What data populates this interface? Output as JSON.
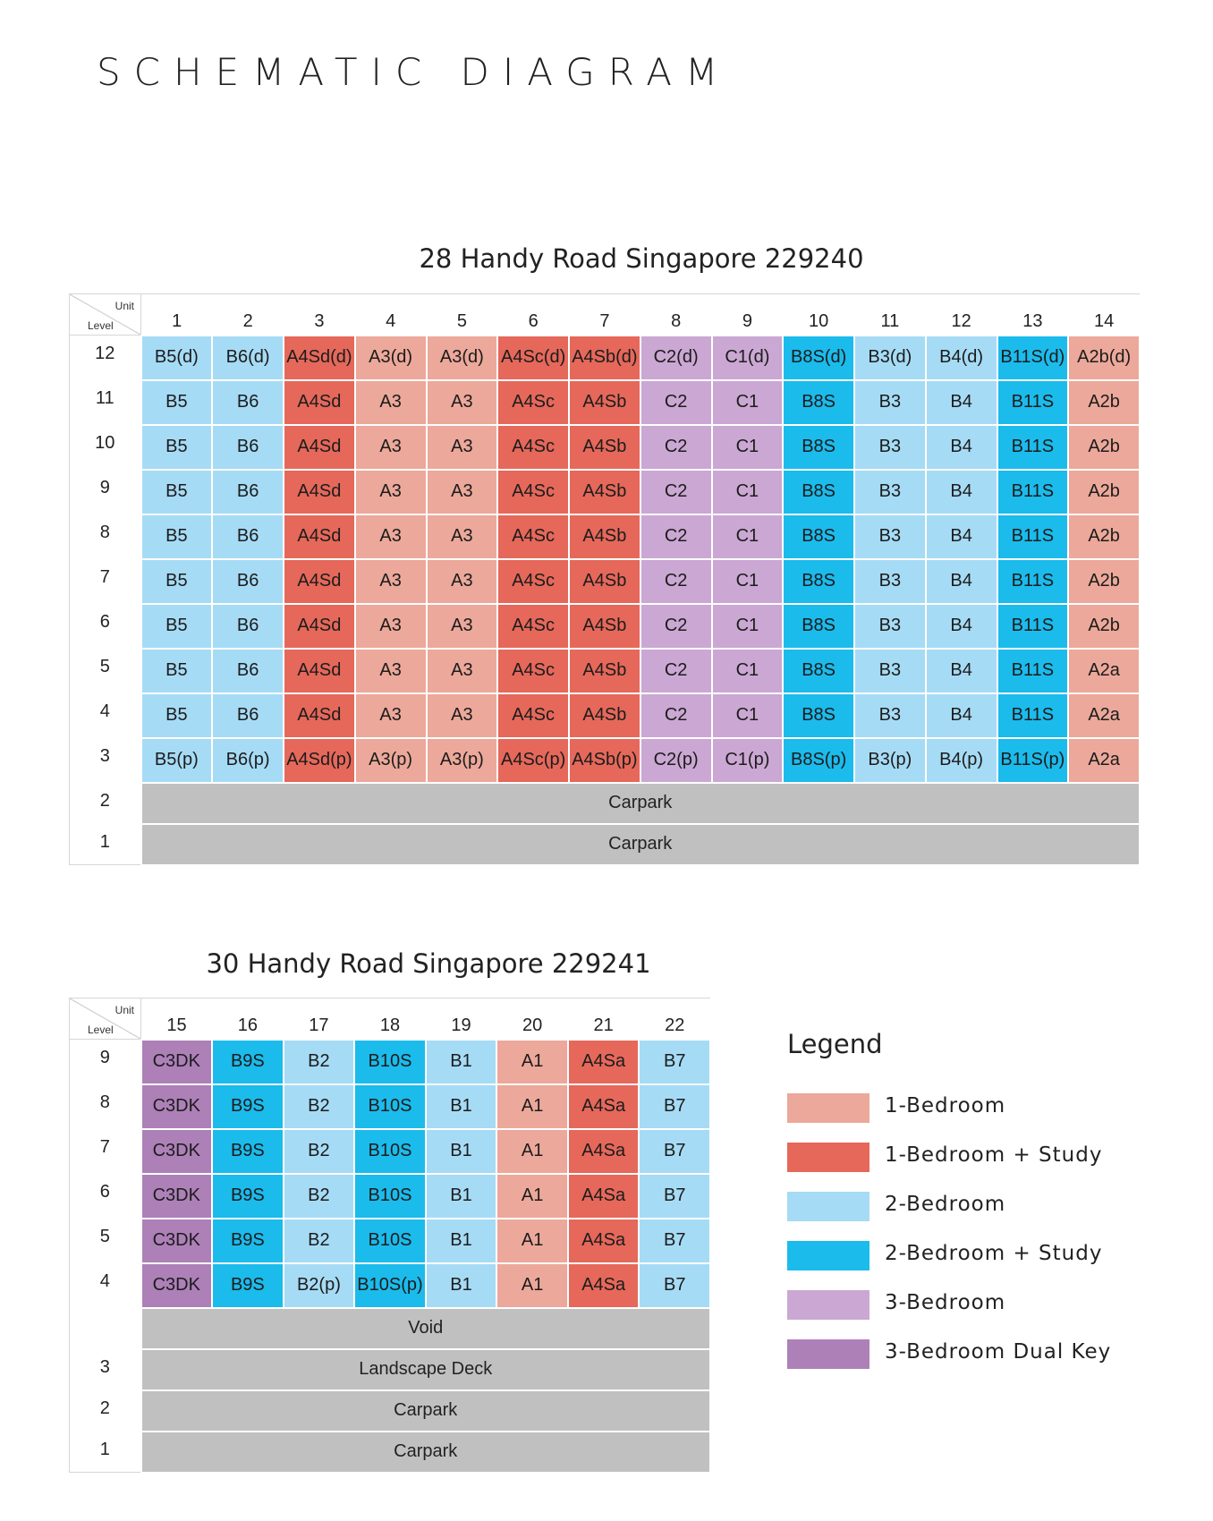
{
  "title": "SCHEMATIC DIAGRAM",
  "corner_unit": "Unit",
  "corner_level": "Level",
  "legend": {
    "title": "Legend",
    "items": [
      {
        "type": "1BR",
        "label": "1-Bedroom",
        "color": "#eca89a"
      },
      {
        "type": "1BRS",
        "label": "1-Bedroom + Study",
        "color": "#e5685a"
      },
      {
        "type": "2BR",
        "label": "2-Bedroom",
        "color": "#a6dbf5"
      },
      {
        "type": "2BRS",
        "label": "2-Bedroom + Study",
        "color": "#1bbbec"
      },
      {
        "type": "3BR",
        "label": "3-Bedroom",
        "color": "#cba7d3"
      },
      {
        "type": "3BRDK",
        "label": "3-Bedroom Dual Key",
        "color": "#ad80b8"
      }
    ]
  },
  "blocks": [
    {
      "id": "b28",
      "title": "28 Handy Road Singapore 229240",
      "units": [
        {
          "number": "1",
          "type": "2BR"
        },
        {
          "number": "2",
          "type": "2BR"
        },
        {
          "number": "3",
          "type": "1BRS"
        },
        {
          "number": "4",
          "type": "1BR"
        },
        {
          "number": "5",
          "type": "1BR"
        },
        {
          "number": "6",
          "type": "1BRS"
        },
        {
          "number": "7",
          "type": "1BRS"
        },
        {
          "number": "8",
          "type": "3BR"
        },
        {
          "number": "9",
          "type": "3BR"
        },
        {
          "number": "10",
          "type": "2BRS"
        },
        {
          "number": "11",
          "type": "2BR"
        },
        {
          "number": "12",
          "type": "2BR"
        },
        {
          "number": "13",
          "type": "2BRS"
        },
        {
          "number": "14",
          "type": "1BR"
        }
      ],
      "rows": [
        {
          "level": "12",
          "cells": [
            "B5(d)",
            "B6(d)",
            "A4Sd(d)",
            "A3(d)",
            "A3(d)",
            "A4Sc(d)",
            "A4Sb(d)",
            "C2(d)",
            "C1(d)",
            "B8S(d)",
            "B3(d)",
            "B4(d)",
            "B11S(d)",
            "A2b(d)"
          ]
        },
        {
          "level": "11",
          "cells": [
            "B5",
            "B6",
            "A4Sd",
            "A3",
            "A3",
            "A4Sc",
            "A4Sb",
            "C2",
            "C1",
            "B8S",
            "B3",
            "B4",
            "B11S",
            "A2b"
          ]
        },
        {
          "level": "10",
          "cells": [
            "B5",
            "B6",
            "A4Sd",
            "A3",
            "A3",
            "A4Sc",
            "A4Sb",
            "C2",
            "C1",
            "B8S",
            "B3",
            "B4",
            "B11S",
            "A2b"
          ]
        },
        {
          "level": "9",
          "cells": [
            "B5",
            "B6",
            "A4Sd",
            "A3",
            "A3",
            "A4Sc",
            "A4Sb",
            "C2",
            "C1",
            "B8S",
            "B3",
            "B4",
            "B11S",
            "A2b"
          ]
        },
        {
          "level": "8",
          "cells": [
            "B5",
            "B6",
            "A4Sd",
            "A3",
            "A3",
            "A4Sc",
            "A4Sb",
            "C2",
            "C1",
            "B8S",
            "B3",
            "B4",
            "B11S",
            "A2b"
          ]
        },
        {
          "level": "7",
          "cells": [
            "B5",
            "B6",
            "A4Sd",
            "A3",
            "A3",
            "A4Sc",
            "A4Sb",
            "C2",
            "C1",
            "B8S",
            "B3",
            "B4",
            "B11S",
            "A2b"
          ]
        },
        {
          "level": "6",
          "cells": [
            "B5",
            "B6",
            "A4Sd",
            "A3",
            "A3",
            "A4Sc",
            "A4Sb",
            "C2",
            "C1",
            "B8S",
            "B3",
            "B4",
            "B11S",
            "A2b"
          ]
        },
        {
          "level": "5",
          "cells": [
            "B5",
            "B6",
            "A4Sd",
            "A3",
            "A3",
            "A4Sc",
            "A4Sb",
            "C2",
            "C1",
            "B8S",
            "B3",
            "B4",
            "B11S",
            "A2a"
          ]
        },
        {
          "level": "4",
          "cells": [
            "B5",
            "B6",
            "A4Sd",
            "A3",
            "A3",
            "A4Sc",
            "A4Sb",
            "C2",
            "C1",
            "B8S",
            "B3",
            "B4",
            "B11S",
            "A2a"
          ]
        },
        {
          "level": "3",
          "cells": [
            "B5(p)",
            "B6(p)",
            "A4Sd(p)",
            "A3(p)",
            "A3(p)",
            "A4Sc(p)",
            "A4Sb(p)",
            "C2(p)",
            "C1(p)",
            "B8S(p)",
            "B3(p)",
            "B4(p)",
            "B11S(p)",
            "A2a"
          ]
        },
        {
          "level": "2",
          "span": "Carpark"
        },
        {
          "level": "1",
          "span": "Carpark"
        }
      ]
    },
    {
      "id": "b30",
      "title": "30 Handy Road Singapore 229241",
      "units": [
        {
          "number": "15",
          "type": "3BRDK"
        },
        {
          "number": "16",
          "type": "2BRS"
        },
        {
          "number": "17",
          "type": "2BR"
        },
        {
          "number": "18",
          "type": "2BRS"
        },
        {
          "number": "19",
          "type": "2BR"
        },
        {
          "number": "20",
          "type": "1BR"
        },
        {
          "number": "21",
          "type": "1BRS"
        },
        {
          "number": "22",
          "type": "2BR"
        }
      ],
      "rows": [
        {
          "level": "9",
          "cells": [
            "C3DK",
            "B9S",
            "B2",
            "B10S",
            "B1",
            "A1",
            "A4Sa",
            "B7"
          ]
        },
        {
          "level": "8",
          "cells": [
            "C3DK",
            "B9S",
            "B2",
            "B10S",
            "B1",
            "A1",
            "A4Sa",
            "B7"
          ]
        },
        {
          "level": "7",
          "cells": [
            "C3DK",
            "B9S",
            "B2",
            "B10S",
            "B1",
            "A1",
            "A4Sa",
            "B7"
          ]
        },
        {
          "level": "6",
          "cells": [
            "C3DK",
            "B9S",
            "B2",
            "B10S",
            "B1",
            "A1",
            "A4Sa",
            "B7"
          ]
        },
        {
          "level": "5",
          "cells": [
            "C3DK",
            "B9S",
            "B2",
            "B10S",
            "B1",
            "A1",
            "A4Sa",
            "B7"
          ]
        },
        {
          "level": "4",
          "cells": [
            "C3DK",
            "B9S",
            "B2(p)",
            "B10S(p)",
            "B1",
            "A1",
            "A4Sa",
            "B7"
          ]
        },
        {
          "level": "",
          "span": "Void"
        },
        {
          "level": "3",
          "span": "Landscape Deck"
        },
        {
          "level": "2",
          "span": "Carpark"
        },
        {
          "level": "1",
          "span": "Carpark"
        }
      ]
    }
  ]
}
